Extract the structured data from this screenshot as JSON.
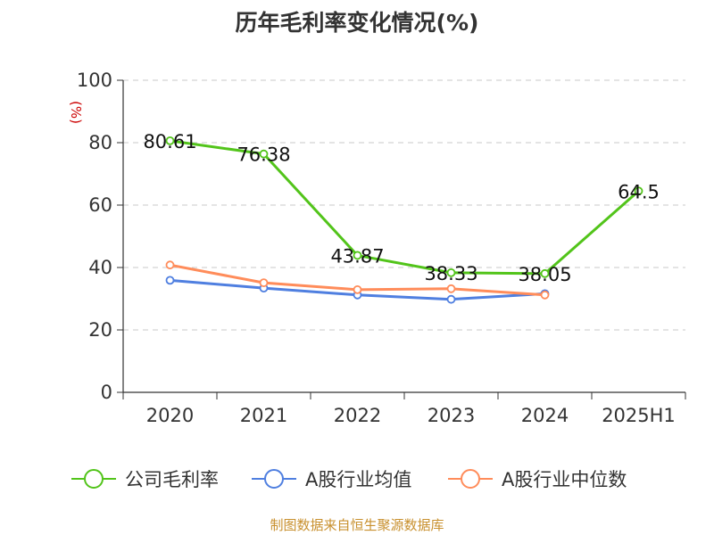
{
  "chart_data": {
    "type": "line",
    "title": "历年毛利率变化情况(%)",
    "ylabel": "(%)",
    "xlabel": "",
    "categories": [
      "2020",
      "2021",
      "2022",
      "2023",
      "2024",
      "2025H1"
    ],
    "ylim": [
      0,
      100
    ],
    "yticks": [
      "0",
      "20",
      "40",
      "60",
      "80",
      "100"
    ],
    "grid": "horizontal-dashed",
    "legend_position": "bottom",
    "series": [
      {
        "name": "公司毛利率",
        "color": "#52c41a",
        "values": [
          80.61,
          76.38,
          43.87,
          38.33,
          38.05,
          64.5
        ],
        "data_labels": [
          "80.61",
          "76.38",
          "43.87",
          "38.33",
          "38.05",
          "64.5"
        ]
      },
      {
        "name": "A股行业均值",
        "color": "#4f7fe0",
        "values": [
          35.9,
          33.4,
          31.2,
          29.8,
          31.6,
          null
        ]
      },
      {
        "name": "A股行业中位数",
        "color": "#ff8c5a",
        "values": [
          40.8,
          35.1,
          32.9,
          33.2,
          31.2,
          null
        ]
      }
    ]
  },
  "source": "制图数据来自恒生聚源数据库"
}
